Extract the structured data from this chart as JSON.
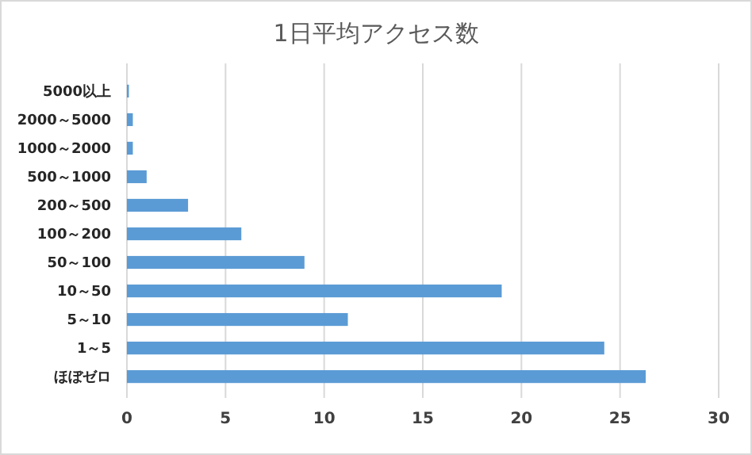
{
  "chart_data": {
    "type": "bar",
    "orientation": "horizontal",
    "title": "1日平均アクセス数",
    "categories": [
      "5000以上",
      "2000～5000",
      "1000～2000",
      "500～1000",
      "200～500",
      "100～200",
      "50～100",
      "10～50",
      "5～10",
      "1～5",
      "ほぼゼロ"
    ],
    "values": [
      0.1,
      0.3,
      0.3,
      1.0,
      3.1,
      5.8,
      9.0,
      19.0,
      11.2,
      24.2,
      26.3
    ],
    "color": "#5b9bd5",
    "xlim": [
      0,
      30
    ],
    "xticks": [
      0,
      5,
      10,
      15,
      20,
      25,
      30
    ],
    "grid": "x"
  }
}
